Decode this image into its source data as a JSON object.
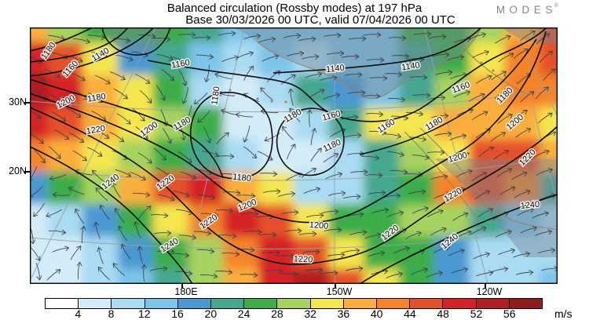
{
  "title": {
    "line1": "Balanced circulation (Rossby modes) at 197 hPa",
    "line2": "Base 30/03/2026 00 UTC, valid 07/04/2026 00 UTC"
  },
  "logo": {
    "text": "MODES",
    "mark": "®"
  },
  "axes": {
    "lat_ticks": [
      {
        "label": "30N",
        "y": 130
      },
      {
        "label": "20N",
        "y": 218
      }
    ],
    "lon_ticks": [
      {
        "label": "180E",
        "x": 231
      },
      {
        "label": "150W",
        "x": 426
      },
      {
        "label": "120W",
        "x": 617
      }
    ]
  },
  "colorbar": {
    "unit": "m/s",
    "tick_labels": [
      4,
      8,
      12,
      16,
      20,
      24,
      28,
      32,
      36,
      40,
      44,
      48,
      52,
      56
    ]
  },
  "chart_data": {
    "type": "heatmap",
    "title": "Balanced circulation (Rossby modes) at 197 hPa",
    "subtitle": "Base 30/03/2026 00 UTC, valid 07/04/2026 00 UTC",
    "field": "balanced wind speed",
    "units": "m/s",
    "level_step": 4,
    "level_min": 0,
    "level_max": 56,
    "palette": [
      "#ffffff",
      "#d3ecf8",
      "#a9dbf2",
      "#7cc4e8",
      "#4a98d2",
      "#45a78f",
      "#3dad49",
      "#a6d35e",
      "#f4e64f",
      "#fbae3e",
      "#f5832a",
      "#e5512a",
      "#d42328",
      "#b01f24",
      "#8f1d1f"
    ],
    "x_ticks": [
      "180E",
      "150W",
      "120W"
    ],
    "y_ticks": [
      "30N",
      "20N"
    ],
    "speed_grid": {
      "cols": 16,
      "rows": 9,
      "values": [
        [
          36,
          30,
          26,
          26,
          26,
          22,
          14,
          12,
          12,
          12,
          14,
          24,
          26,
          28,
          36,
          44
        ],
        [
          50,
          44,
          34,
          16,
          22,
          12,
          10,
          12,
          10,
          12,
          14,
          20,
          26,
          32,
          40,
          46
        ],
        [
          54,
          50,
          38,
          34,
          26,
          8,
          6,
          10,
          22,
          18,
          12,
          20,
          30,
          36,
          40,
          40
        ],
        [
          48,
          44,
          38,
          34,
          30,
          24,
          4,
          6,
          8,
          22,
          32,
          34,
          36,
          38,
          36,
          34
        ],
        [
          40,
          38,
          34,
          30,
          26,
          20,
          8,
          4,
          4,
          8,
          22,
          28,
          34,
          44,
          46,
          38
        ],
        [
          18,
          24,
          28,
          36,
          46,
          48,
          38,
          34,
          10,
          8,
          20,
          26,
          40,
          46,
          42,
          22
        ],
        [
          4,
          8,
          16,
          24,
          32,
          40,
          50,
          44,
          34,
          26,
          24,
          28,
          28,
          20,
          12,
          10
        ],
        [
          4,
          4,
          8,
          16,
          26,
          30,
          40,
          48,
          46,
          32,
          26,
          26,
          18,
          10,
          8,
          8
        ],
        [
          6,
          4,
          8,
          12,
          20,
          28,
          38,
          50,
          52,
          44,
          34,
          26,
          18,
          10,
          8,
          12
        ]
      ]
    },
    "contours": {
      "variable": "balanced streamfunction",
      "interval": 20,
      "labels": [
        [
          1180,
          62,
          65,
          -55
        ],
        [
          1160,
          90,
          88,
          -48
        ],
        [
          1140,
          128,
          70,
          -30
        ],
        [
          1160,
          230,
          82,
          -10
        ],
        [
          1180,
          123,
          125,
          -10
        ],
        [
          1200,
          84,
          130,
          -28
        ],
        [
          1220,
          122,
          166,
          -10
        ],
        [
          1200,
          190,
          165,
          -35
        ],
        [
          1180,
          232,
          158,
          -30
        ],
        [
          1180,
          275,
          122,
          -82
        ],
        [
          1180,
          308,
          227,
          6
        ],
        [
          1180,
          373,
          148,
          -30
        ],
        [
          1160,
          422,
          148,
          -15
        ],
        [
          1180,
          423,
          186,
          -25
        ],
        [
          1140,
          427,
          88,
          -6
        ],
        [
          1140,
          523,
          85,
          -8
        ],
        [
          1160,
          587,
          112,
          -20
        ],
        [
          1180,
          643,
          122,
          -45
        ],
        [
          1160,
          492,
          161,
          -32
        ],
        [
          1180,
          553,
          158,
          -30
        ],
        [
          1200,
          656,
          156,
          -40
        ],
        [
          1200,
          583,
          201,
          -15
        ],
        [
          1220,
          672,
          201,
          -45
        ],
        [
          1220,
          577,
          249,
          -30
        ],
        [
          1240,
          141,
          232,
          -38
        ],
        [
          1220,
          211,
          233,
          -35
        ],
        [
          1200,
          315,
          262,
          -22
        ],
        [
          1220,
          266,
          283,
          -35
        ],
        [
          1240,
          216,
          313,
          -32
        ],
        [
          1200,
          406,
          288,
          4
        ],
        [
          1220,
          386,
          331,
          3
        ],
        [
          1220,
          497,
          297,
          -38
        ],
        [
          1240,
          573,
          308,
          -40
        ],
        [
          1240,
          675,
          262,
          -6
        ]
      ]
    },
    "flow_angles": {
      "cols": 8,
      "rows": 5,
      "x0": 42,
      "y0": 35,
      "dx": 96,
      "dy": 82,
      "deg": [
        [
          15,
          8,
          0,
          -5,
          0,
          5,
          -15,
          -40
        ],
        [
          40,
          35,
          15,
          -8,
          0,
          8,
          -25,
          -45
        ],
        [
          30,
          30,
          20,
          10,
          5,
          20,
          -30,
          -15
        ],
        [
          195,
          210,
          15,
          5,
          0,
          -20,
          -25,
          -10
        ],
        [
          190,
          200,
          10,
          5,
          0,
          -15,
          -5,
          0
        ]
      ]
    },
    "vortices": [
      {
        "x": 272,
        "y": 170,
        "r": 78
      },
      {
        "x": 352,
        "y": 185,
        "r": 62
      },
      {
        "x": 75,
        "y": 285,
        "r": 70
      }
    ]
  }
}
